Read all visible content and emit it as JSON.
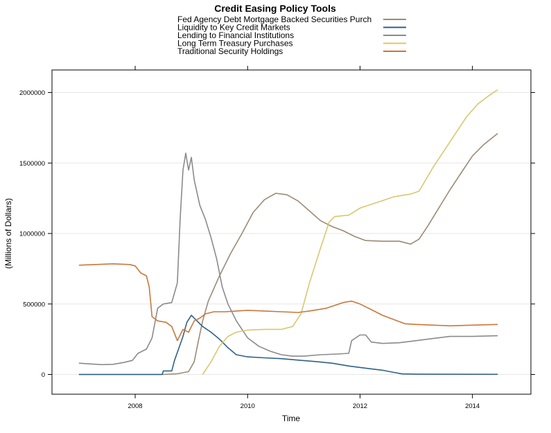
{
  "chart_data": {
    "type": "line",
    "title": "Credit Easing Policy Tools",
    "xlabel": "Time",
    "ylabel": "(Millions of Dollars)",
    "xlim": [
      2006.52,
      2015.04
    ],
    "ylim": [
      -140000,
      2160000
    ],
    "x_ticks": [
      2008,
      2010,
      2012,
      2014
    ],
    "y_ticks": [
      0,
      500000,
      1000000,
      1500000,
      2000000
    ],
    "grid": "horizontal",
    "legend_position": "top",
    "series": [
      {
        "name": "Fed Agency Debt  Mortgage Backed Securities Purch",
        "color": "#9c8a75",
        "points": [
          [
            2007.0,
            0
          ],
          [
            2008.5,
            0
          ],
          [
            2008.75,
            5000
          ],
          [
            2008.95,
            20000
          ],
          [
            2009.05,
            90000
          ],
          [
            2009.12,
            230000
          ],
          [
            2009.2,
            380000
          ],
          [
            2009.3,
            520000
          ],
          [
            2009.5,
            700000
          ],
          [
            2009.7,
            860000
          ],
          [
            2009.9,
            1000000
          ],
          [
            2010.1,
            1150000
          ],
          [
            2010.3,
            1240000
          ],
          [
            2010.5,
            1285000
          ],
          [
            2010.7,
            1275000
          ],
          [
            2010.9,
            1230000
          ],
          [
            2011.1,
            1160000
          ],
          [
            2011.3,
            1090000
          ],
          [
            2011.5,
            1050000
          ],
          [
            2011.7,
            1020000
          ],
          [
            2011.9,
            980000
          ],
          [
            2012.1,
            950000
          ],
          [
            2012.4,
            945000
          ],
          [
            2012.7,
            945000
          ],
          [
            2012.9,
            925000
          ],
          [
            2013.05,
            960000
          ],
          [
            2013.2,
            1050000
          ],
          [
            2013.4,
            1180000
          ],
          [
            2013.6,
            1310000
          ],
          [
            2013.8,
            1430000
          ],
          [
            2014.0,
            1550000
          ],
          [
            2014.2,
            1630000
          ],
          [
            2014.45,
            1710000
          ]
        ]
      },
      {
        "name": "Liquidity to Key Credit Markets",
        "color": "#2e6088",
        "points": [
          [
            2007.0,
            0
          ],
          [
            2008.48,
            0
          ],
          [
            2008.5,
            25000
          ],
          [
            2008.65,
            25000
          ],
          [
            2008.7,
            100000
          ],
          [
            2008.78,
            190000
          ],
          [
            2008.85,
            270000
          ],
          [
            2008.92,
            370000
          ],
          [
            2009.0,
            420000
          ],
          [
            2009.1,
            380000
          ],
          [
            2009.2,
            340000
          ],
          [
            2009.35,
            300000
          ],
          [
            2009.5,
            250000
          ],
          [
            2009.65,
            190000
          ],
          [
            2009.8,
            140000
          ],
          [
            2010.0,
            125000
          ],
          [
            2010.3,
            118000
          ],
          [
            2010.6,
            112000
          ],
          [
            2010.9,
            102000
          ],
          [
            2011.2,
            92000
          ],
          [
            2011.5,
            80000
          ],
          [
            2011.8,
            60000
          ],
          [
            2012.1,
            45000
          ],
          [
            2012.4,
            30000
          ],
          [
            2012.6,
            15000
          ],
          [
            2012.75,
            4000
          ],
          [
            2013.0,
            2000
          ],
          [
            2014.45,
            1000
          ]
        ]
      },
      {
        "name": "Lending to Financial Institutions",
        "color": "#8a8a8a",
        "points": [
          [
            2007.0,
            80000
          ],
          [
            2007.2,
            75000
          ],
          [
            2007.4,
            70000
          ],
          [
            2007.6,
            72000
          ],
          [
            2007.8,
            85000
          ],
          [
            2007.95,
            100000
          ],
          [
            2008.05,
            150000
          ],
          [
            2008.2,
            180000
          ],
          [
            2008.3,
            260000
          ],
          [
            2008.4,
            470000
          ],
          [
            2008.5,
            500000
          ],
          [
            2008.65,
            510000
          ],
          [
            2008.75,
            650000
          ],
          [
            2008.8,
            1100000
          ],
          [
            2008.85,
            1450000
          ],
          [
            2008.9,
            1570000
          ],
          [
            2008.95,
            1450000
          ],
          [
            2009.0,
            1540000
          ],
          [
            2009.05,
            1380000
          ],
          [
            2009.15,
            1200000
          ],
          [
            2009.25,
            1100000
          ],
          [
            2009.35,
            970000
          ],
          [
            2009.45,
            820000
          ],
          [
            2009.55,
            620000
          ],
          [
            2009.65,
            500000
          ],
          [
            2009.8,
            380000
          ],
          [
            2010.0,
            260000
          ],
          [
            2010.2,
            200000
          ],
          [
            2010.4,
            165000
          ],
          [
            2010.6,
            140000
          ],
          [
            2010.8,
            130000
          ],
          [
            2011.0,
            130000
          ],
          [
            2011.3,
            140000
          ],
          [
            2011.6,
            145000
          ],
          [
            2011.8,
            150000
          ],
          [
            2011.85,
            240000
          ],
          [
            2012.0,
            280000
          ],
          [
            2012.1,
            280000
          ],
          [
            2012.2,
            230000
          ],
          [
            2012.4,
            220000
          ],
          [
            2012.7,
            225000
          ],
          [
            2013.0,
            240000
          ],
          [
            2013.3,
            255000
          ],
          [
            2013.6,
            270000
          ],
          [
            2014.0,
            270000
          ],
          [
            2014.45,
            275000
          ]
        ]
      },
      {
        "name": "Long Term Treasury Purchases",
        "color": "#d8c76e",
        "points": [
          [
            2009.2,
            0
          ],
          [
            2009.35,
            90000
          ],
          [
            2009.5,
            200000
          ],
          [
            2009.65,
            270000
          ],
          [
            2009.8,
            300000
          ],
          [
            2010.0,
            315000
          ],
          [
            2010.3,
            320000
          ],
          [
            2010.6,
            320000
          ],
          [
            2010.8,
            340000
          ],
          [
            2010.95,
            430000
          ],
          [
            2011.1,
            650000
          ],
          [
            2011.3,
            900000
          ],
          [
            2011.45,
            1080000
          ],
          [
            2011.55,
            1120000
          ],
          [
            2011.8,
            1130000
          ],
          [
            2012.0,
            1180000
          ],
          [
            2012.3,
            1220000
          ],
          [
            2012.6,
            1260000
          ],
          [
            2012.9,
            1280000
          ],
          [
            2013.05,
            1300000
          ],
          [
            2013.3,
            1470000
          ],
          [
            2013.6,
            1650000
          ],
          [
            2013.9,
            1830000
          ],
          [
            2014.1,
            1920000
          ],
          [
            2014.3,
            1980000
          ],
          [
            2014.45,
            2020000
          ]
        ]
      },
      {
        "name": "Traditional Security Holdings",
        "color": "#c8773c",
        "points": [
          [
            2007.0,
            775000
          ],
          [
            2007.3,
            780000
          ],
          [
            2007.6,
            785000
          ],
          [
            2007.9,
            780000
          ],
          [
            2008.0,
            770000
          ],
          [
            2008.1,
            720000
          ],
          [
            2008.2,
            700000
          ],
          [
            2008.25,
            620000
          ],
          [
            2008.3,
            410000
          ],
          [
            2008.4,
            380000
          ],
          [
            2008.55,
            370000
          ],
          [
            2008.65,
            340000
          ],
          [
            2008.75,
            240000
          ],
          [
            2008.85,
            320000
          ],
          [
            2008.95,
            300000
          ],
          [
            2009.05,
            380000
          ],
          [
            2009.15,
            400000
          ],
          [
            2009.25,
            430000
          ],
          [
            2009.4,
            445000
          ],
          [
            2009.6,
            445000
          ],
          [
            2009.8,
            450000
          ],
          [
            2010.0,
            455000
          ],
          [
            2010.3,
            450000
          ],
          [
            2010.6,
            445000
          ],
          [
            2010.9,
            440000
          ],
          [
            2011.1,
            450000
          ],
          [
            2011.4,
            470000
          ],
          [
            2011.7,
            510000
          ],
          [
            2011.85,
            520000
          ],
          [
            2012.0,
            500000
          ],
          [
            2012.2,
            460000
          ],
          [
            2012.4,
            420000
          ],
          [
            2012.6,
            390000
          ],
          [
            2012.8,
            360000
          ],
          [
            2013.0,
            355000
          ],
          [
            2013.3,
            350000
          ],
          [
            2013.6,
            345000
          ],
          [
            2014.0,
            350000
          ],
          [
            2014.45,
            355000
          ]
        ]
      }
    ]
  }
}
